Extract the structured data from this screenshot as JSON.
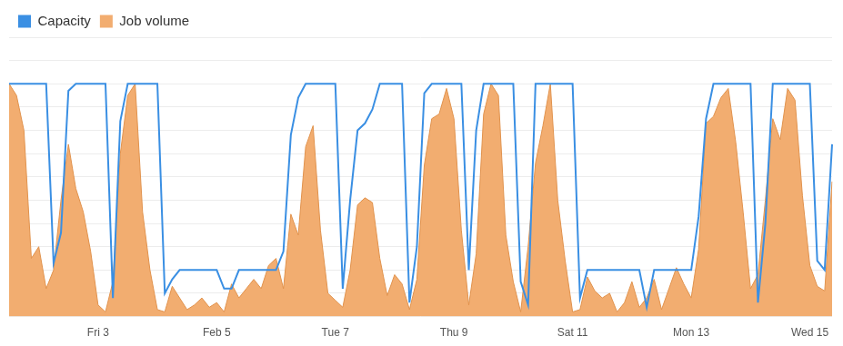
{
  "chart_data": {
    "type": "line",
    "categories": [
      null,
      null,
      null,
      null,
      null,
      null,
      null,
      null,
      null,
      null,
      null,
      null,
      "Fri 3",
      null,
      null,
      null,
      null,
      null,
      null,
      null,
      null,
      null,
      null,
      null,
      null,
      null,
      null,
      null,
      "Feb 5",
      null,
      null,
      null,
      null,
      null,
      null,
      null,
      null,
      null,
      null,
      null,
      null,
      null,
      null,
      null,
      "Tue 7",
      null,
      null,
      null,
      null,
      null,
      null,
      null,
      null,
      null,
      null,
      null,
      null,
      null,
      null,
      null,
      "Thu 9",
      null,
      null,
      null,
      null,
      null,
      null,
      null,
      null,
      null,
      null,
      null,
      null,
      null,
      null,
      null,
      "Sat 11",
      null,
      null,
      null,
      null,
      null,
      null,
      null,
      null,
      null,
      null,
      null,
      null,
      null,
      null,
      null,
      "Mon 13",
      null,
      null,
      null,
      null,
      null,
      null,
      null,
      null,
      null,
      null,
      null,
      null,
      null,
      null,
      null,
      "Wed 15",
      null,
      null,
      null
    ],
    "series": [
      {
        "name": "Capacity",
        "type": "line",
        "color": "#3a8fe3",
        "values": [
          10,
          10,
          10,
          10,
          10,
          10,
          2.3,
          3.6,
          9.7,
          10,
          10,
          10,
          10,
          10,
          0.8,
          8.4,
          10,
          10,
          10,
          10,
          10,
          1,
          1.6,
          2,
          2,
          2,
          2,
          2,
          2,
          1.2,
          1.2,
          2,
          2,
          2,
          2,
          2,
          2,
          2.8,
          7.8,
          9.4,
          10,
          10,
          10,
          10,
          10,
          1.2,
          5,
          8,
          8.3,
          8.9,
          10,
          10,
          10,
          10,
          0.6,
          3,
          9.6,
          10,
          10,
          10,
          10,
          10,
          2,
          8,
          10,
          10,
          10,
          10,
          10,
          1.5,
          0.5,
          10,
          10,
          10,
          10,
          10,
          10,
          0.8,
          2,
          2,
          2,
          2,
          2,
          2,
          2,
          2,
          0.4,
          2,
          2,
          2,
          2,
          2,
          2,
          4.3,
          8.5,
          10,
          10,
          10,
          10,
          10,
          10,
          0.6,
          4,
          10,
          10,
          10,
          10,
          10,
          10,
          2.4,
          2,
          7.4
        ]
      },
      {
        "name": "Job volume",
        "type": "area",
        "color": "#f2ad70",
        "values": [
          10,
          9.5,
          8,
          2.5,
          3,
          1.2,
          2,
          5,
          7.4,
          5.5,
          4.5,
          2.8,
          0.5,
          0.2,
          1.5,
          7,
          9.5,
          10,
          4.5,
          2,
          0.3,
          0.2,
          1.3,
          0.8,
          0.3,
          0.5,
          0.8,
          0.4,
          0.6,
          0.2,
          1.4,
          0.8,
          1.2,
          1.6,
          1.2,
          2.2,
          2.5,
          1.2,
          4.4,
          3.5,
          7.3,
          8.2,
          3.7,
          1,
          0.7,
          0.4,
          2,
          4.8,
          5.1,
          4.9,
          2.5,
          0.9,
          1.8,
          1.4,
          0.3,
          1.6,
          6.5,
          8.5,
          8.7,
          9.8,
          8.5,
          3.7,
          0.5,
          2.7,
          8.7,
          10,
          9.5,
          3.5,
          1.5,
          0.2,
          3,
          6.6,
          8.2,
          10,
          5,
          2.4,
          0.2,
          0.3,
          1.7,
          1.1,
          0.8,
          1,
          0.2,
          0.6,
          1.5,
          0.4,
          0.8,
          1.6,
          0.3,
          1.2,
          2.1,
          1.4,
          0.8,
          2.9,
          8.3,
          8.6,
          9.4,
          9.8,
          7.5,
          4.5,
          1.2,
          1.8,
          5,
          8.5,
          7.6,
          9.8,
          9.3,
          5.2,
          2.2,
          1.3,
          1.1,
          5.8
        ]
      }
    ],
    "ylim": [
      0,
      12
    ],
    "yticks": [
      0,
      1,
      2,
      3,
      4,
      5,
      6,
      7,
      8,
      9,
      10,
      11,
      12
    ],
    "grid": true,
    "legend": "top-left",
    "tick_labels": "x"
  }
}
